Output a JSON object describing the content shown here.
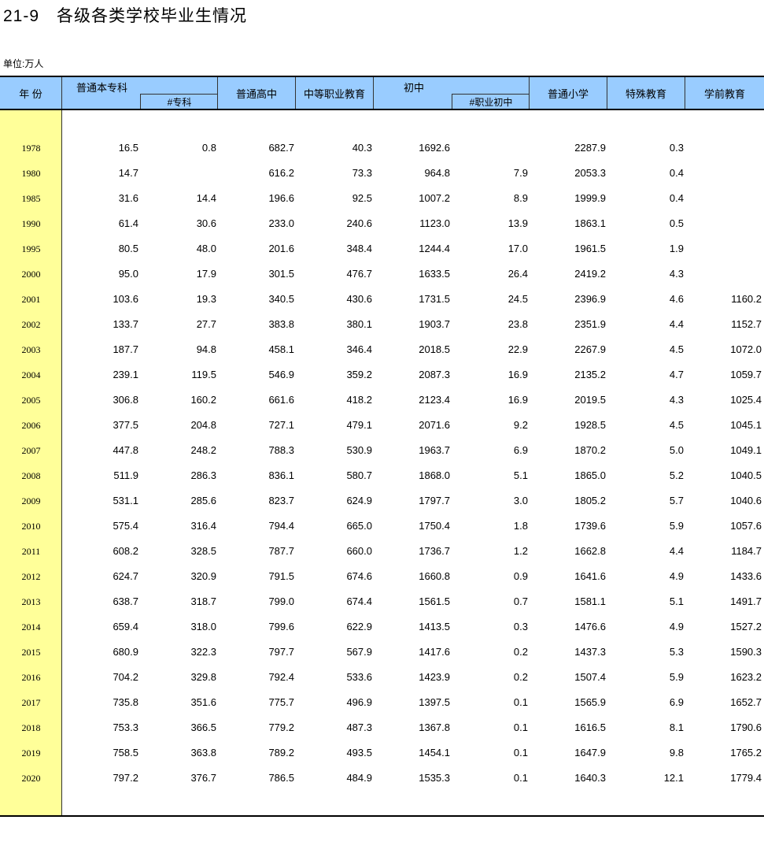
{
  "title": {
    "number": "21-9",
    "text": "各级各类学校毕业生情况"
  },
  "unit": "单位:万人",
  "header": {
    "year": "年 份",
    "undergrad": "普通本专科",
    "junior_college": "#专科",
    "senior_high": "普通高中",
    "secondary_vocational": "中等职业教育",
    "junior_high": "初中",
    "vocational_junior": "#职业初中",
    "primary": "普通小学",
    "special": "特殊教育",
    "preschool": "学前教育"
  },
  "colors": {
    "header_bg": "#99ccff",
    "year_bg": "#ffff99"
  },
  "rows": [
    {
      "year": "1978",
      "v": [
        "16.5",
        "0.8",
        "682.7",
        "40.3",
        "1692.6",
        "",
        "2287.9",
        "0.3",
        ""
      ]
    },
    {
      "year": "1980",
      "v": [
        "14.7",
        "",
        "616.2",
        "73.3",
        "964.8",
        "7.9",
        "2053.3",
        "0.4",
        ""
      ]
    },
    {
      "year": "1985",
      "v": [
        "31.6",
        "14.4",
        "196.6",
        "92.5",
        "1007.2",
        "8.9",
        "1999.9",
        "0.4",
        ""
      ]
    },
    {
      "year": "1990",
      "v": [
        "61.4",
        "30.6",
        "233.0",
        "240.6",
        "1123.0",
        "13.9",
        "1863.1",
        "0.5",
        ""
      ]
    },
    {
      "year": "1995",
      "v": [
        "80.5",
        "48.0",
        "201.6",
        "348.4",
        "1244.4",
        "17.0",
        "1961.5",
        "1.9",
        ""
      ]
    },
    {
      "year": "2000",
      "v": [
        "95.0",
        "17.9",
        "301.5",
        "476.7",
        "1633.5",
        "26.4",
        "2419.2",
        "4.3",
        ""
      ]
    },
    {
      "year": "2001",
      "v": [
        "103.6",
        "19.3",
        "340.5",
        "430.6",
        "1731.5",
        "24.5",
        "2396.9",
        "4.6",
        "1160.2"
      ]
    },
    {
      "year": "2002",
      "v": [
        "133.7",
        "27.7",
        "383.8",
        "380.1",
        "1903.7",
        "23.8",
        "2351.9",
        "4.4",
        "1152.7"
      ]
    },
    {
      "year": "2003",
      "v": [
        "187.7",
        "94.8",
        "458.1",
        "346.4",
        "2018.5",
        "22.9",
        "2267.9",
        "4.5",
        "1072.0"
      ]
    },
    {
      "year": "2004",
      "v": [
        "239.1",
        "119.5",
        "546.9",
        "359.2",
        "2087.3",
        "16.9",
        "2135.2",
        "4.7",
        "1059.7"
      ]
    },
    {
      "year": "2005",
      "v": [
        "306.8",
        "160.2",
        "661.6",
        "418.2",
        "2123.4",
        "16.9",
        "2019.5",
        "4.3",
        "1025.4"
      ]
    },
    {
      "year": "2006",
      "v": [
        "377.5",
        "204.8",
        "727.1",
        "479.1",
        "2071.6",
        "9.2",
        "1928.5",
        "4.5",
        "1045.1"
      ]
    },
    {
      "year": "2007",
      "v": [
        "447.8",
        "248.2",
        "788.3",
        "530.9",
        "1963.7",
        "6.9",
        "1870.2",
        "5.0",
        "1049.1"
      ]
    },
    {
      "year": "2008",
      "v": [
        "511.9",
        "286.3",
        "836.1",
        "580.7",
        "1868.0",
        "5.1",
        "1865.0",
        "5.2",
        "1040.5"
      ]
    },
    {
      "year": "2009",
      "v": [
        "531.1",
        "285.6",
        "823.7",
        "624.9",
        "1797.7",
        "3.0",
        "1805.2",
        "5.7",
        "1040.6"
      ]
    },
    {
      "year": "2010",
      "v": [
        "575.4",
        "316.4",
        "794.4",
        "665.0",
        "1750.4",
        "1.8",
        "1739.6",
        "5.9",
        "1057.6"
      ]
    },
    {
      "year": "2011",
      "v": [
        "608.2",
        "328.5",
        "787.7",
        "660.0",
        "1736.7",
        "1.2",
        "1662.8",
        "4.4",
        "1184.7"
      ]
    },
    {
      "year": "2012",
      "v": [
        "624.7",
        "320.9",
        "791.5",
        "674.6",
        "1660.8",
        "0.9",
        "1641.6",
        "4.9",
        "1433.6"
      ]
    },
    {
      "year": "2013",
      "v": [
        "638.7",
        "318.7",
        "799.0",
        "674.4",
        "1561.5",
        "0.7",
        "1581.1",
        "5.1",
        "1491.7"
      ]
    },
    {
      "year": "2014",
      "v": [
        "659.4",
        "318.0",
        "799.6",
        "622.9",
        "1413.5",
        "0.3",
        "1476.6",
        "4.9",
        "1527.2"
      ]
    },
    {
      "year": "2015",
      "v": [
        "680.9",
        "322.3",
        "797.7",
        "567.9",
        "1417.6",
        "0.2",
        "1437.3",
        "5.3",
        "1590.3"
      ]
    },
    {
      "year": "2016",
      "v": [
        "704.2",
        "329.8",
        "792.4",
        "533.6",
        "1423.9",
        "0.2",
        "1507.4",
        "5.9",
        "1623.2"
      ]
    },
    {
      "year": "2017",
      "v": [
        "735.8",
        "351.6",
        "775.7",
        "496.9",
        "1397.5",
        "0.1",
        "1565.9",
        "6.9",
        "1652.7"
      ]
    },
    {
      "year": "2018",
      "v": [
        "753.3",
        "366.5",
        "779.2",
        "487.3",
        "1367.8",
        "0.1",
        "1616.5",
        "8.1",
        "1790.6"
      ]
    },
    {
      "year": "2019",
      "v": [
        "758.5",
        "363.8",
        "789.2",
        "493.5",
        "1454.1",
        "0.1",
        "1647.9",
        "9.8",
        "1765.2"
      ]
    },
    {
      "year": "2020",
      "v": [
        "797.2",
        "376.7",
        "786.5",
        "484.9",
        "1535.3",
        "0.1",
        "1640.3",
        "12.1",
        "1779.4"
      ]
    }
  ]
}
